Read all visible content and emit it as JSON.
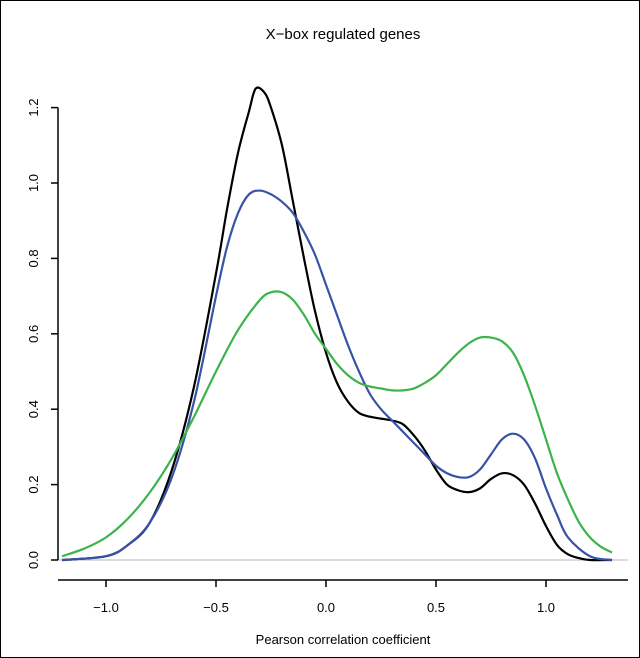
{
  "chart_data": {
    "type": "line",
    "title": "X−box regulated genes",
    "xlabel": "Pearson correlation coefficient",
    "ylabel": "",
    "xlim": [
      -1.2,
      1.32
    ],
    "ylim": [
      0,
      1.3
    ],
    "x_ticks": [
      -1.0,
      -0.5,
      0.0,
      0.5,
      1.0
    ],
    "x_tick_labels": [
      "−1.0",
      "−0.5",
      "0.0",
      "0.5",
      "1.0"
    ],
    "y_ticks": [
      0.0,
      0.2,
      0.4,
      0.6,
      0.8,
      1.0,
      1.2
    ],
    "y_tick_labels": [
      "0.0",
      "0.2",
      "0.4",
      "0.6",
      "0.8",
      "1.0",
      "1.2"
    ],
    "baseline": 0,
    "grid": false,
    "series": [
      {
        "color": "#000000",
        "x": [
          -1.2,
          -1.0,
          -0.9,
          -0.8,
          -0.7,
          -0.6,
          -0.5,
          -0.45,
          -0.4,
          -0.35,
          -0.32,
          -0.28,
          -0.25,
          -0.2,
          -0.15,
          -0.1,
          -0.05,
          0.0,
          0.05,
          0.1,
          0.15,
          0.2,
          0.25,
          0.3,
          0.35,
          0.4,
          0.45,
          0.5,
          0.55,
          0.6,
          0.65,
          0.7,
          0.75,
          0.8,
          0.85,
          0.9,
          0.95,
          1.0,
          1.05,
          1.1,
          1.15,
          1.2,
          1.3
        ],
        "y": [
          0.0,
          0.01,
          0.04,
          0.1,
          0.24,
          0.46,
          0.76,
          0.93,
          1.08,
          1.19,
          1.25,
          1.24,
          1.2,
          1.1,
          0.95,
          0.8,
          0.66,
          0.55,
          0.47,
          0.42,
          0.39,
          0.38,
          0.375,
          0.37,
          0.36,
          0.33,
          0.29,
          0.24,
          0.2,
          0.185,
          0.18,
          0.19,
          0.215,
          0.23,
          0.225,
          0.2,
          0.15,
          0.09,
          0.04,
          0.015,
          0.005,
          0.0,
          0.0
        ]
      },
      {
        "color": "#3853a5",
        "x": [
          -1.2,
          -1.0,
          -0.9,
          -0.8,
          -0.7,
          -0.6,
          -0.5,
          -0.45,
          -0.4,
          -0.35,
          -0.3,
          -0.25,
          -0.2,
          -0.15,
          -0.1,
          -0.05,
          0.0,
          0.05,
          0.1,
          0.15,
          0.2,
          0.25,
          0.3,
          0.35,
          0.4,
          0.45,
          0.5,
          0.55,
          0.6,
          0.65,
          0.7,
          0.75,
          0.8,
          0.85,
          0.9,
          0.95,
          1.0,
          1.05,
          1.1,
          1.2,
          1.3
        ],
        "y": [
          0.0,
          0.01,
          0.04,
          0.1,
          0.22,
          0.42,
          0.7,
          0.83,
          0.92,
          0.97,
          0.98,
          0.97,
          0.95,
          0.92,
          0.87,
          0.81,
          0.73,
          0.65,
          0.57,
          0.5,
          0.44,
          0.4,
          0.37,
          0.34,
          0.31,
          0.28,
          0.25,
          0.23,
          0.22,
          0.22,
          0.24,
          0.28,
          0.32,
          0.335,
          0.32,
          0.27,
          0.19,
          0.12,
          0.06,
          0.01,
          0.0
        ]
      },
      {
        "color": "#3cb44b",
        "x": [
          -1.2,
          -1.1,
          -1.0,
          -0.9,
          -0.8,
          -0.7,
          -0.6,
          -0.5,
          -0.4,
          -0.3,
          -0.25,
          -0.2,
          -0.15,
          -0.1,
          -0.05,
          0.0,
          0.05,
          0.1,
          0.15,
          0.2,
          0.25,
          0.3,
          0.35,
          0.4,
          0.45,
          0.5,
          0.55,
          0.6,
          0.65,
          0.7,
          0.75,
          0.8,
          0.85,
          0.9,
          0.95,
          1.0,
          1.05,
          1.1,
          1.15,
          1.2,
          1.25,
          1.3
        ],
        "y": [
          0.01,
          0.03,
          0.06,
          0.11,
          0.18,
          0.27,
          0.38,
          0.5,
          0.61,
          0.69,
          0.71,
          0.71,
          0.69,
          0.65,
          0.6,
          0.56,
          0.52,
          0.49,
          0.47,
          0.46,
          0.455,
          0.45,
          0.45,
          0.455,
          0.47,
          0.49,
          0.52,
          0.55,
          0.575,
          0.59,
          0.59,
          0.58,
          0.55,
          0.49,
          0.41,
          0.32,
          0.23,
          0.16,
          0.1,
          0.06,
          0.035,
          0.02
        ]
      }
    ]
  }
}
